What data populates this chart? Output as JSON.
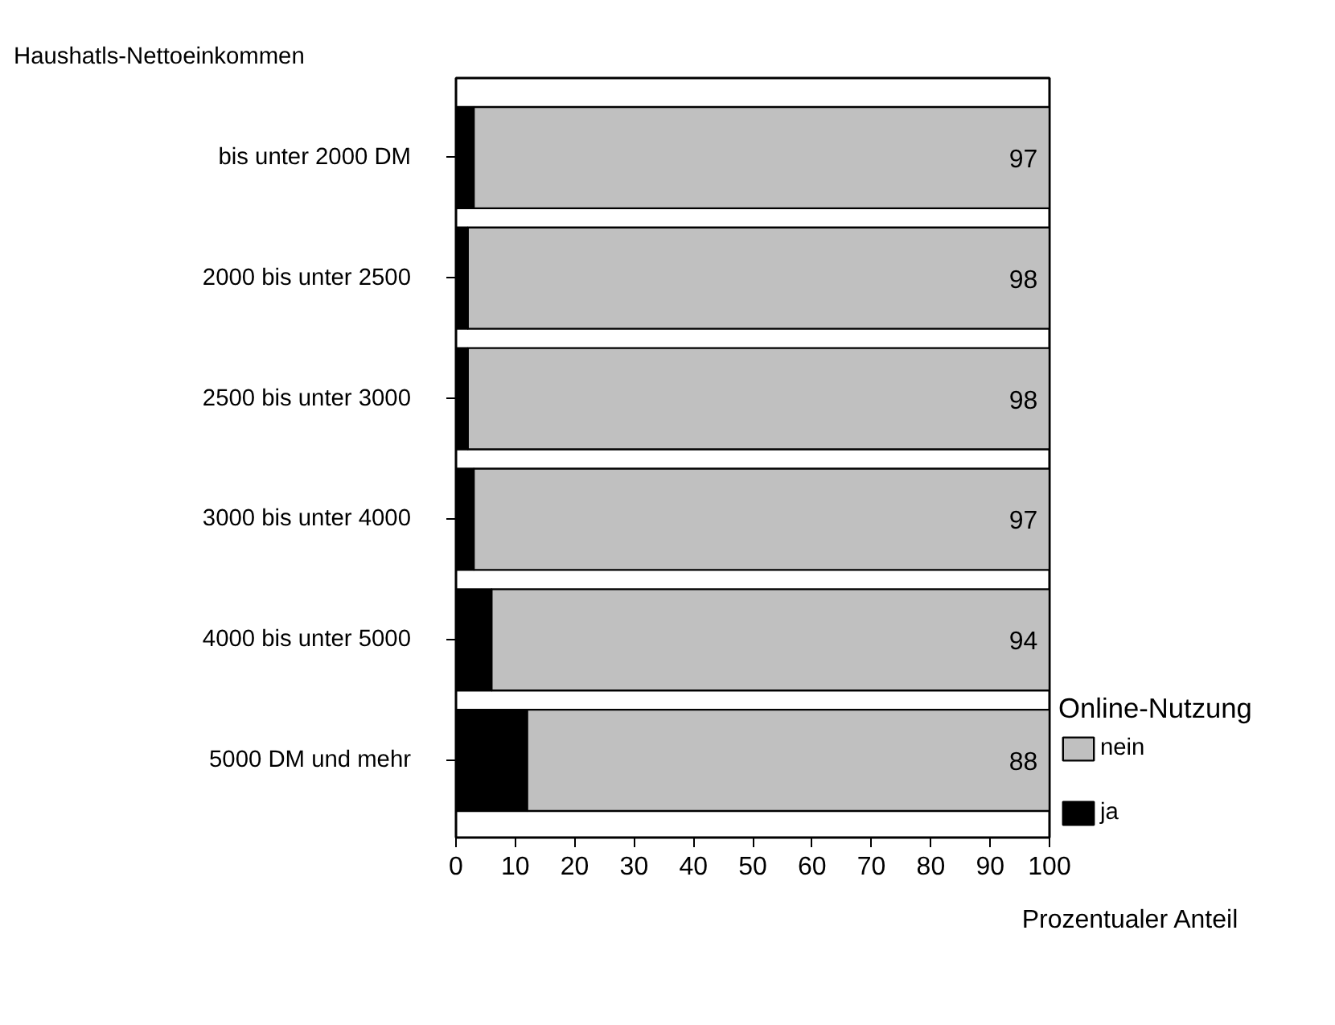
{
  "chart_data": {
    "type": "bar",
    "orientation": "horizontal",
    "stacked": true,
    "ylabel": "Haushatls-Nettoeinkommen",
    "xlabel": "Prozentualer Anteil",
    "legend_title": "Online-Nutzung",
    "legend": "right",
    "grid": false,
    "categories": [
      "bis unter 2000 DM",
      "2000 bis unter 2500",
      "2500 bis unter 3000",
      "3000 bis unter 4000",
      "4000 bis unter 5000",
      "5000 DM und mehr"
    ],
    "xlim": [
      0,
      100
    ],
    "xticks": [
      0,
      10,
      20,
      30,
      40,
      50,
      60,
      70,
      80,
      90,
      100
    ],
    "series": [
      {
        "name": "ja",
        "color": "#000000",
        "values": [
          3,
          2,
          2,
          3,
          6,
          12
        ]
      },
      {
        "name": "nein",
        "color": "#c0c0c0",
        "values": [
          97,
          98,
          98,
          97,
          94,
          88
        ],
        "value_labels": [
          "97",
          "98",
          "98",
          "97",
          "94",
          "88"
        ]
      }
    ]
  }
}
